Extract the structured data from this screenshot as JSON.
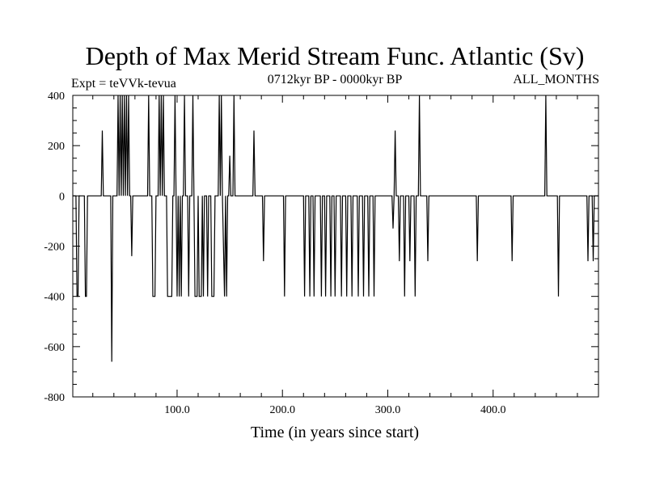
{
  "chart_data": {
    "type": "line",
    "title": "Depth of Max Merid Stream Func. Atlantic (Sv)",
    "subtitle_left": "Expt = teVVk-tevua",
    "subtitle_center": "0712kyr BP - 0000kyr BP",
    "subtitle_right": "ALL_MONTHS",
    "xlabel": "Time (in years since start)",
    "ylabel": "",
    "xlim": [
      1,
      500
    ],
    "ylim": [
      -800,
      400
    ],
    "x_ticks": [
      100,
      200,
      300,
      400
    ],
    "x_tick_labels": [
      "100.0",
      "200.0",
      "300.0",
      "400.0"
    ],
    "y_ticks": [
      -800,
      -600,
      -400,
      -200,
      0,
      200,
      400
    ],
    "y_tick_labels": [
      "-800",
      "-600",
      "-400",
      "-200",
      "0",
      "200",
      "400"
    ],
    "grid": false,
    "series": [
      {
        "color": "#000000",
        "points": [
          [
            1,
            0
          ],
          [
            4,
            0
          ],
          [
            5,
            -400
          ],
          [
            6,
            -400
          ],
          [
            7,
            0
          ],
          [
            12,
            0
          ],
          [
            13,
            -400
          ],
          [
            14,
            -400
          ],
          [
            15,
            0
          ],
          [
            28,
            0
          ],
          [
            29,
            260
          ],
          [
            30,
            0
          ],
          [
            37,
            0
          ],
          [
            38,
            -660
          ],
          [
            39,
            0
          ],
          [
            43,
            0
          ],
          [
            44,
            400
          ],
          [
            45,
            0
          ],
          [
            46,
            400
          ],
          [
            47,
            0
          ],
          [
            48,
            400
          ],
          [
            49,
            0
          ],
          [
            50,
            400
          ],
          [
            51,
            0
          ],
          [
            52,
            400
          ],
          [
            53,
            0
          ],
          [
            54,
            400
          ],
          [
            55,
            0
          ],
          [
            56,
            0
          ],
          [
            57,
            -240
          ],
          [
            58,
            0
          ],
          [
            72,
            0
          ],
          [
            73,
            400
          ],
          [
            74,
            0
          ],
          [
            76,
            0
          ],
          [
            77,
            -400
          ],
          [
            79,
            -400
          ],
          [
            80,
            0
          ],
          [
            82,
            0
          ],
          [
            83,
            400
          ],
          [
            84,
            0
          ],
          [
            85,
            400
          ],
          [
            86,
            0
          ],
          [
            87,
            400
          ],
          [
            88,
            0
          ],
          [
            90,
            0
          ],
          [
            91,
            -400
          ],
          [
            95,
            -400
          ],
          [
            96,
            0
          ],
          [
            97,
            0
          ],
          [
            98,
            400
          ],
          [
            99,
            0
          ],
          [
            100,
            -400
          ],
          [
            101,
            0
          ],
          [
            102,
            -400
          ],
          [
            103,
            0
          ],
          [
            104,
            -400
          ],
          [
            105,
            0
          ],
          [
            106,
            0
          ],
          [
            107,
            400
          ],
          [
            108,
            0
          ],
          [
            110,
            0
          ],
          [
            111,
            -400
          ],
          [
            112,
            0
          ],
          [
            114,
            0
          ],
          [
            115,
            400
          ],
          [
            116,
            0
          ],
          [
            117,
            -400
          ],
          [
            119,
            -400
          ],
          [
            120,
            0
          ],
          [
            121,
            -400
          ],
          [
            123,
            -400
          ],
          [
            124,
            0
          ],
          [
            125,
            -400
          ],
          [
            126,
            0
          ],
          [
            128,
            0
          ],
          [
            129,
            -400
          ],
          [
            130,
            0
          ],
          [
            132,
            0
          ],
          [
            133,
            -400
          ],
          [
            135,
            -400
          ],
          [
            136,
            0
          ],
          [
            139,
            0
          ],
          [
            140,
            400
          ],
          [
            141,
            0
          ],
          [
            142,
            400
          ],
          [
            143,
            0
          ],
          [
            145,
            -400
          ],
          [
            146,
            0
          ],
          [
            147,
            -400
          ],
          [
            148,
            0
          ],
          [
            149,
            0
          ],
          [
            150,
            160
          ],
          [
            151,
            0
          ],
          [
            153,
            0
          ],
          [
            154,
            400
          ],
          [
            155,
            0
          ],
          [
            172,
            0
          ],
          [
            173,
            260
          ],
          [
            174,
            0
          ],
          [
            181,
            0
          ],
          [
            182,
            -260
          ],
          [
            183,
            0
          ],
          [
            201,
            0
          ],
          [
            202,
            -400
          ],
          [
            203,
            0
          ],
          [
            220,
            0
          ],
          [
            221,
            -400
          ],
          [
            222,
            0
          ],
          [
            225,
            0
          ],
          [
            226,
            -400
          ],
          [
            227,
            0
          ],
          [
            229,
            0
          ],
          [
            230,
            -400
          ],
          [
            231,
            0
          ],
          [
            236,
            0
          ],
          [
            237,
            -400
          ],
          [
            238,
            0
          ],
          [
            240,
            0
          ],
          [
            241,
            -400
          ],
          [
            242,
            0
          ],
          [
            245,
            0
          ],
          [
            246,
            -400
          ],
          [
            247,
            0
          ],
          [
            249,
            0
          ],
          [
            250,
            -400
          ],
          [
            251,
            0
          ],
          [
            255,
            0
          ],
          [
            256,
            -400
          ],
          [
            257,
            0
          ],
          [
            260,
            0
          ],
          [
            261,
            -400
          ],
          [
            262,
            0
          ],
          [
            265,
            0
          ],
          [
            266,
            -400
          ],
          [
            267,
            0
          ],
          [
            271,
            0
          ],
          [
            272,
            -400
          ],
          [
            273,
            0
          ],
          [
            276,
            0
          ],
          [
            277,
            -400
          ],
          [
            278,
            0
          ],
          [
            281,
            0
          ],
          [
            282,
            -400
          ],
          [
            283,
            0
          ],
          [
            286,
            0
          ],
          [
            287,
            -400
          ],
          [
            288,
            0
          ],
          [
            304,
            0
          ],
          [
            305,
            -130
          ],
          [
            306,
            0
          ],
          [
            307,
            260
          ],
          [
            308,
            0
          ],
          [
            310,
            0
          ],
          [
            311,
            -260
          ],
          [
            312,
            0
          ],
          [
            315,
            0
          ],
          [
            316,
            -400
          ],
          [
            317,
            0
          ],
          [
            320,
            0
          ],
          [
            321,
            -260
          ],
          [
            322,
            0
          ],
          [
            325,
            0
          ],
          [
            326,
            -400
          ],
          [
            327,
            0
          ],
          [
            329,
            0
          ],
          [
            330,
            400
          ],
          [
            331,
            0
          ],
          [
            337,
            0
          ],
          [
            338,
            -260
          ],
          [
            339,
            0
          ],
          [
            384,
            0
          ],
          [
            385,
            -260
          ],
          [
            386,
            0
          ],
          [
            417,
            0
          ],
          [
            418,
            -260
          ],
          [
            419,
            0
          ],
          [
            449,
            0
          ],
          [
            450,
            400
          ],
          [
            451,
            0
          ],
          [
            461,
            0
          ],
          [
            462,
            -400
          ],
          [
            463,
            0
          ],
          [
            489,
            0
          ],
          [
            490,
            -260
          ],
          [
            491,
            0
          ],
          [
            494,
            0
          ],
          [
            495,
            -260
          ],
          [
            496,
            0
          ],
          [
            500,
            0
          ]
        ]
      }
    ]
  }
}
